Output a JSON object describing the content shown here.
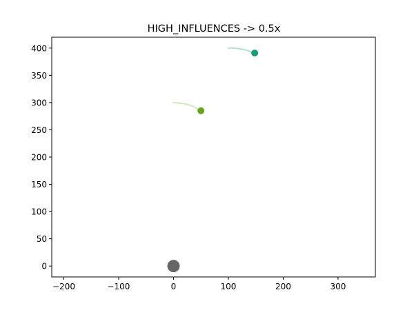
{
  "chart_data": {
    "type": "scatter",
    "title": "HIGH_INFLUENCES -> 0.5x",
    "xlabel": "",
    "ylabel": "",
    "xlim": [
      -222,
      368
    ],
    "ylim": [
      -20,
      420
    ],
    "xticks": [
      -200,
      -100,
      0,
      100,
      200,
      300
    ],
    "xtick_labels": [
      "−200",
      "−100",
      "0",
      "100",
      "200",
      "300"
    ],
    "yticks": [
      0,
      50,
      100,
      150,
      200,
      250,
      300,
      350,
      400
    ],
    "ytick_labels": [
      "0",
      "50",
      "100",
      "150",
      "200",
      "250",
      "300",
      "350",
      "400"
    ],
    "grid": false,
    "legend": "none",
    "center": {
      "x": 0,
      "y": 0,
      "color": "#666666"
    },
    "points": [
      {
        "x": 50,
        "y": 285,
        "color": "#66a61e",
        "trail_color": "#d3e6bc",
        "trail": [
          [
            0,
            300
          ],
          [
            12,
            299
          ],
          [
            24,
            297
          ],
          [
            34,
            294
          ],
          [
            43,
            289
          ],
          [
            50,
            285
          ]
        ]
      },
      {
        "x": 148,
        "y": 391,
        "color": "#1b9e77",
        "trail_color": "#b3e0d3",
        "trail": [
          [
            100,
            400
          ],
          [
            112,
            400
          ],
          [
            124,
            398
          ],
          [
            134,
            396
          ],
          [
            142,
            393
          ],
          [
            148,
            391
          ]
        ]
      }
    ]
  }
}
